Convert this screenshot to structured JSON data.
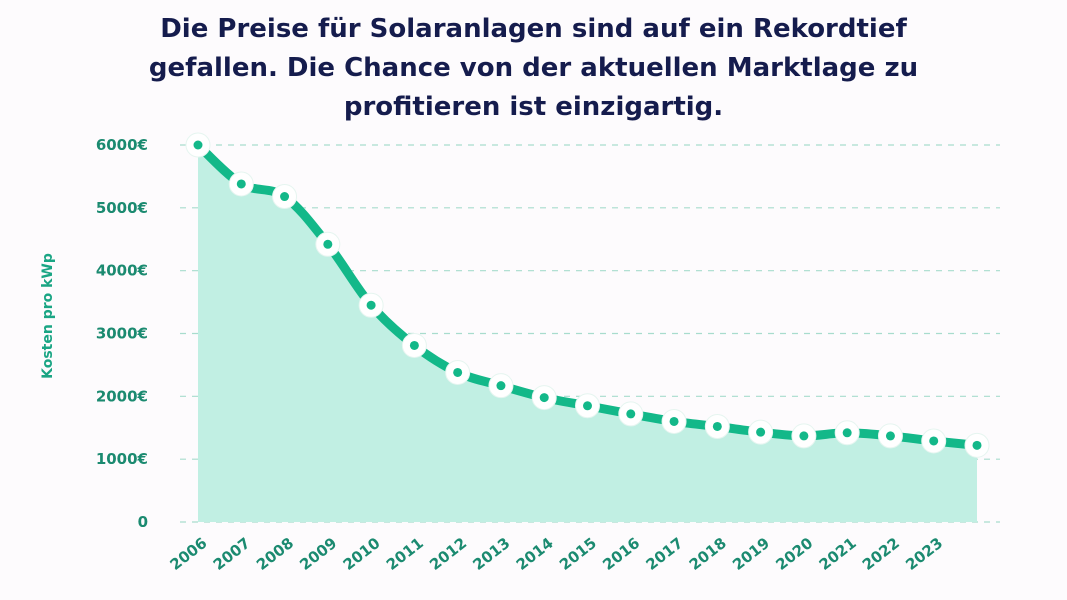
{
  "title_lines": [
    "Die Preise für Solaranlagen sind auf ein Rekordtief",
    "gefallen. Die Chance von der aktuellen Marktlage zu",
    "profitieren ist einzigartig."
  ],
  "chart_data": {
    "type": "area",
    "title": "Die Preise für Solaranlagen sind auf ein Rekordtief gefallen. Die Chance von der aktuellen Marktlage zu profitieren ist einzigartig.",
    "xlabel": "",
    "ylabel": "Kosten pro kWp",
    "ylim": [
      0,
      6000
    ],
    "yticks": [
      0,
      1000,
      2000,
      3000,
      4000,
      5000,
      6000
    ],
    "ytick_labels": [
      "0",
      "1000€",
      "2000€",
      "3000€",
      "4000€",
      "5000€",
      "6000€"
    ],
    "xtick_labels": [
      "2006",
      "2007",
      "2008",
      "2009",
      "2010",
      "2011",
      "2012",
      "2013",
      "2014",
      "2015",
      "2016",
      "2017",
      "2018",
      "2019",
      "2020",
      "2021",
      "2022",
      "2023"
    ],
    "grid": true,
    "colors": {
      "line": "#13b889",
      "fill": "#c1efe3",
      "grid": "#a8dccd",
      "marker_fill": "#ffffff"
    },
    "series": [
      {
        "values": [
          6000,
          5380,
          5180,
          4420,
          3450,
          2810,
          2380,
          2170,
          1980,
          1850,
          1720,
          1600,
          1520,
          1430,
          1370,
          1420,
          1370,
          1290,
          1220
        ]
      }
    ]
  }
}
